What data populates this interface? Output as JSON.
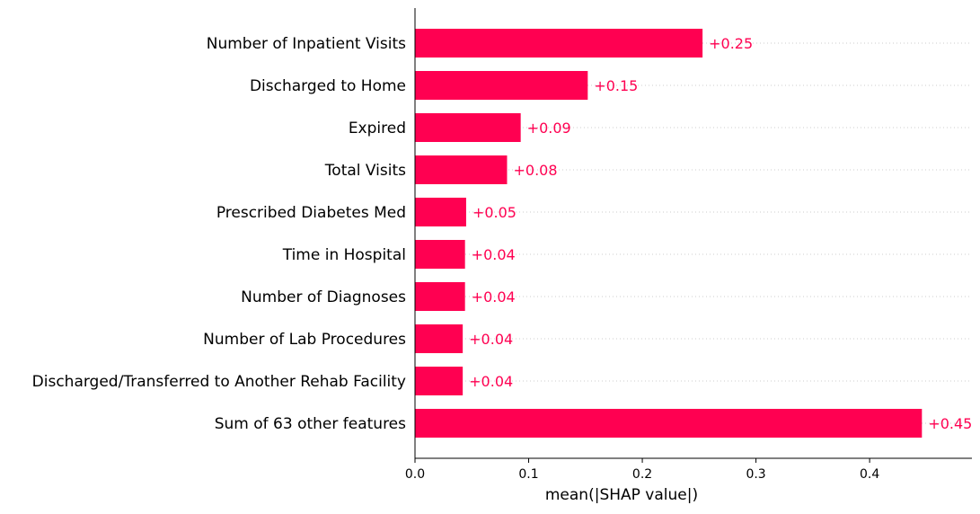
{
  "chart_data": {
    "type": "bar",
    "orientation": "horizontal",
    "categories": [
      "Number of Inpatient Visits",
      "Discharged to Home",
      "Expired",
      "Total Visits",
      "Prescribed Diabetes Med",
      "Time in Hospital",
      "Number of Diagnoses",
      "Number of Lab Procedures",
      "Discharged/Transferred to Another Rehab Facility",
      "Sum of 63 other features"
    ],
    "values": [
      0.253,
      0.152,
      0.093,
      0.081,
      0.045,
      0.044,
      0.044,
      0.042,
      0.042,
      0.446
    ],
    "value_labels": [
      "+0.25",
      "+0.15",
      "+0.09",
      "+0.08",
      "+0.05",
      "+0.04",
      "+0.04",
      "+0.04",
      "+0.04",
      "+0.45"
    ],
    "xlabel": "mean(|SHAP value|)",
    "ylabel": "",
    "title": "",
    "xlim": [
      0,
      0.49
    ],
    "xticks": [
      0,
      0.1,
      0.2,
      0.3,
      0.4
    ],
    "xtick_labels": [
      "0.0",
      "0.1",
      "0.2",
      "0.3",
      "0.4"
    ],
    "grid": "dotted horizontal guide lines per row",
    "legend": "none",
    "colors": {
      "bar": "#ff0051",
      "value_text": "#ff0051",
      "guide": "#cccccc",
      "axis": "#000000"
    }
  }
}
